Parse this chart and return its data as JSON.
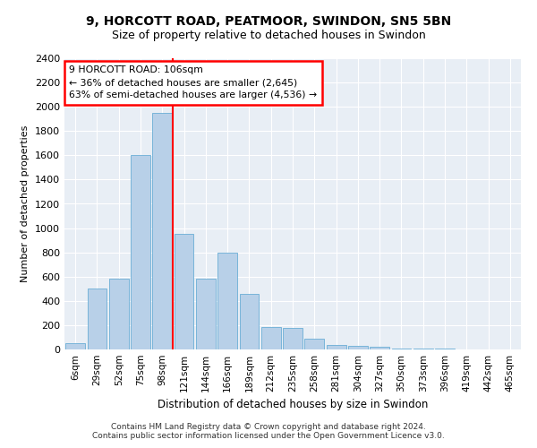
{
  "title": "9, HORCOTT ROAD, PEATMOOR, SWINDON, SN5 5BN",
  "subtitle": "Size of property relative to detached houses in Swindon",
  "xlabel": "Distribution of detached houses by size in Swindon",
  "ylabel": "Number of detached properties",
  "categories": [
    "6sqm",
    "29sqm",
    "52sqm",
    "75sqm",
    "98sqm",
    "121sqm",
    "144sqm",
    "166sqm",
    "189sqm",
    "212sqm",
    "235sqm",
    "258sqm",
    "281sqm",
    "304sqm",
    "327sqm",
    "350sqm",
    "373sqm",
    "396sqm",
    "419sqm",
    "442sqm",
    "465sqm"
  ],
  "values": [
    50,
    500,
    580,
    1600,
    1950,
    950,
    580,
    800,
    460,
    185,
    175,
    85,
    35,
    30,
    20,
    10,
    5,
    5,
    2,
    1,
    1
  ],
  "bar_color": "#b8d0e8",
  "bar_edge_color": "#6aaed6",
  "annotation_title": "9 HORCOTT ROAD: 106sqm",
  "annotation_line1": "← 36% of detached houses are smaller (2,645)",
  "annotation_line2": "63% of semi-detached houses are larger (4,536) →",
  "ylim": [
    0,
    2400
  ],
  "yticks": [
    0,
    200,
    400,
    600,
    800,
    1000,
    1200,
    1400,
    1600,
    1800,
    2000,
    2200,
    2400
  ],
  "background_color": "#e8eef5",
  "grid_color": "#ffffff",
  "footer_line1": "Contains HM Land Registry data © Crown copyright and database right 2024.",
  "footer_line2": "Contains public sector information licensed under the Open Government Licence v3.0."
}
